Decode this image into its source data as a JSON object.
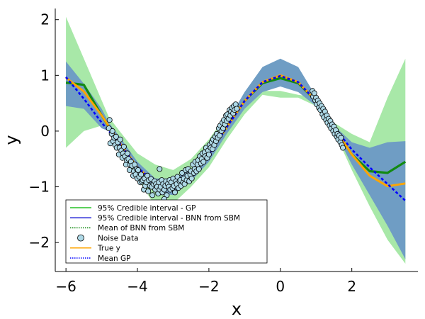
{
  "chart_data": {
    "type": "line",
    "xlabel": "x",
    "ylabel": "y",
    "xlim": [
      -6.3,
      3.85
    ],
    "ylim": [
      -2.52,
      2.2
    ],
    "x_ticks": [
      -6,
      -4,
      -2,
      0,
      2
    ],
    "x_tick_labels": [
      "−6",
      "−4",
      "−2",
      "0",
      "2"
    ],
    "y_ticks": [
      2,
      1,
      0,
      -1,
      -2
    ],
    "y_tick_labels": [
      "2",
      "1",
      "0",
      "−1",
      "−2"
    ],
    "grid": false,
    "legend_position": "bottom-left",
    "legend": [
      {
        "label": "95% Credible interval - GP",
        "kind": "line",
        "color": "#27c227",
        "dash": "solid"
      },
      {
        "label": "95% Credible interval - BNN from SBM",
        "kind": "line",
        "color": "#1f1fd6",
        "dash": "solid"
      },
      {
        "label": "Mean of BNN from SBM",
        "kind": "line",
        "color": "#008000",
        "dash": "dotted"
      },
      {
        "label": "Noise Data",
        "kind": "marker",
        "color": "#add8e6",
        "dash": "solid"
      },
      {
        "label": "True y",
        "kind": "line",
        "color": "#ffa500",
        "dash": "solid"
      },
      {
        "label": "Mean GP",
        "kind": "line",
        "color": "#0000ff",
        "dash": "dotted"
      }
    ],
    "colors": {
      "gp_band": "#a8e8a8",
      "bnn_band": "#6f9dc4",
      "bnn_mean": "#128a12",
      "true_y": "#ffa500",
      "gp_mean": "#0000ff",
      "noise_fill": "#add8e6"
    },
    "true_y": {
      "x": [
        -6.0,
        -5.5,
        -5.0,
        -4.5,
        -4.0,
        -3.5,
        -3.14,
        -3.0,
        -2.5,
        -2.0,
        -1.5,
        -1.0,
        -0.5,
        0.0,
        0.5,
        1.0,
        1.5,
        2.0,
        2.5,
        3.0,
        3.5
      ],
      "y": [
        0.96,
        0.71,
        0.28,
        -0.21,
        -0.65,
        -0.94,
        -1.0,
        -0.99,
        -0.8,
        -0.42,
        0.07,
        0.54,
        0.88,
        1.0,
        0.88,
        0.54,
        0.07,
        -0.42,
        -0.8,
        -0.99,
        -0.94
      ]
    },
    "gp_mean": {
      "x": [
        -6.0,
        -5.5,
        -5.0,
        -4.5,
        -4.0,
        -3.5,
        -3.14,
        -3.0,
        -2.5,
        -2.0,
        -1.5,
        -1.0,
        -0.5,
        0.0,
        0.5,
        1.0,
        1.5,
        2.0,
        2.5,
        3.0,
        3.5
      ],
      "y": [
        0.97,
        0.58,
        0.15,
        -0.22,
        -0.65,
        -0.93,
        -1.0,
        -0.99,
        -0.8,
        -0.42,
        0.07,
        0.54,
        0.88,
        0.99,
        0.88,
        0.54,
        0.07,
        -0.33,
        -0.65,
        -0.95,
        -1.25
      ]
    },
    "bnn_mean": {
      "x": [
        -6.0,
        -5.5,
        -5.0,
        -4.5,
        -4.0,
        -3.5,
        -3.14,
        -3.0,
        -2.5,
        -2.0,
        -1.5,
        -1.0,
        -0.5,
        0.0,
        0.5,
        1.0,
        1.5,
        2.0,
        2.5,
        3.0,
        3.5
      ],
      "y": [
        0.87,
        0.83,
        0.28,
        -0.23,
        -0.66,
        -0.94,
        -1.0,
        -0.99,
        -0.8,
        -0.42,
        0.07,
        0.54,
        0.86,
        0.95,
        0.86,
        0.54,
        0.07,
        -0.42,
        -0.72,
        -0.75,
        -0.55
      ]
    },
    "gp_band": {
      "x": [
        -6.0,
        -5.5,
        -5.0,
        -4.8,
        -4.5,
        -4.0,
        -3.5,
        -3.0,
        -2.5,
        -2.0,
        -1.5,
        -1.0,
        -0.5,
        0.0,
        0.5,
        1.0,
        1.5,
        2.0,
        2.5,
        3.0,
        3.5
      ],
      "upper": [
        2.05,
        1.3,
        0.55,
        0.25,
        0.0,
        -0.4,
        -0.6,
        -0.7,
        -0.5,
        -0.15,
        0.3,
        0.6,
        0.72,
        0.72,
        0.65,
        0.6,
        0.15,
        -0.05,
        -0.2,
        0.6,
        1.3
      ],
      "lower": [
        -0.3,
        0.0,
        0.1,
        0.1,
        -0.35,
        -0.85,
        -1.35,
        -1.3,
        -1.0,
        -0.65,
        -0.15,
        0.3,
        0.65,
        0.6,
        0.6,
        0.45,
        0.0,
        -0.7,
        -1.35,
        -1.95,
        -2.38
      ]
    },
    "bnn_band": {
      "x": [
        -6.0,
        -5.5,
        -5.0,
        -4.8,
        -4.5,
        -4.0,
        -3.5,
        -3.0,
        -2.5,
        -2.0,
        -1.5,
        -1.0,
        -0.5,
        0.0,
        0.5,
        1.0,
        1.5,
        2.0,
        2.5,
        3.0,
        3.5
      ],
      "upper": [
        1.25,
        0.85,
        0.4,
        0.15,
        -0.1,
        -0.55,
        -0.85,
        -0.85,
        -0.7,
        -0.3,
        0.15,
        0.7,
        1.15,
        1.3,
        1.15,
        0.62,
        0.1,
        -0.2,
        -0.3,
        -0.2,
        -0.18
      ],
      "lower": [
        0.45,
        0.4,
        0.05,
        0.0,
        -0.35,
        -0.75,
        -1.1,
        -1.15,
        -0.9,
        -0.55,
        -0.05,
        0.4,
        0.7,
        0.8,
        0.7,
        0.45,
        0.02,
        -0.6,
        -1.15,
        -1.7,
        -2.3
      ]
    },
    "noise_data": {
      "x": [
        -4.8,
        -4.78,
        -4.76,
        -4.72,
        -4.7,
        -4.68,
        -4.65,
        -4.62,
        -4.6,
        -4.58,
        -4.55,
        -4.52,
        -4.5,
        -4.48,
        -4.45,
        -4.42,
        -4.4,
        -4.38,
        -4.35,
        -4.32,
        -4.3,
        -4.28,
        -4.25,
        -4.22,
        -4.2,
        -4.18,
        -4.15,
        -4.12,
        -4.1,
        -4.08,
        -4.05,
        -4.02,
        -4.0,
        -3.98,
        -3.95,
        -3.92,
        -3.9,
        -3.88,
        -3.85,
        -3.82,
        -3.8,
        -3.78,
        -3.75,
        -3.72,
        -3.7,
        -3.68,
        -3.65,
        -3.62,
        -3.6,
        -3.58,
        -3.55,
        -3.52,
        -3.5,
        -3.48,
        -3.45,
        -3.42,
        -3.4,
        -3.38,
        -3.35,
        -3.32,
        -3.3,
        -3.28,
        -3.25,
        -3.22,
        -3.2,
        -3.18,
        -3.15,
        -3.12,
        -3.1,
        -3.08,
        -3.05,
        -3.02,
        -3.0,
        -2.98,
        -2.95,
        -2.92,
        -2.9,
        -2.88,
        -2.85,
        -2.82,
        -2.8,
        -2.78,
        -2.75,
        -2.72,
        -2.7,
        -2.68,
        -2.65,
        -2.62,
        -2.6,
        -2.58,
        -2.55,
        -2.52,
        -2.5,
        -2.48,
        -2.45,
        -2.42,
        -2.4,
        -2.38,
        -2.35,
        -2.32,
        -2.3,
        -2.28,
        -2.25,
        -2.22,
        -2.2,
        -2.18,
        -2.15,
        -2.12,
        -2.1,
        -2.08,
        -2.05,
        -2.02,
        -2.0,
        -1.98,
        -1.95,
        -1.92,
        -1.9,
        -1.88,
        -1.85,
        -1.82,
        -1.8,
        -1.78,
        -1.75,
        -1.72,
        -1.7,
        -1.68,
        -1.65,
        -1.62,
        -1.6,
        -1.58,
        -1.55,
        -1.52,
        -1.5,
        -1.48,
        -1.45,
        -1.42,
        -1.4,
        -1.38,
        -1.35,
        -1.32,
        -1.3,
        -1.28,
        -1.25,
        -1.22,
        0.9,
        0.92,
        0.95,
        0.98,
        1.0,
        1.02,
        1.05,
        1.08,
        1.1,
        1.12,
        1.15,
        1.18,
        1.2,
        1.22,
        1.25,
        1.28,
        1.3,
        1.32,
        1.35,
        1.38,
        1.4,
        1.42,
        1.45,
        1.48,
        1.5,
        1.52,
        1.55,
        1.58,
        1.6,
        1.62,
        1.65,
        1.68,
        1.7,
        1.72,
        1.75,
        -3.38,
        -3.25
      ],
      "y": [
        0.05,
        0.2,
        -0.22,
        -0.05,
        0.0,
        -0.18,
        -0.12,
        -0.25,
        -0.1,
        -0.3,
        -0.2,
        -0.42,
        -0.3,
        -0.15,
        -0.35,
        -0.48,
        -0.4,
        -0.28,
        -0.45,
        -0.6,
        -0.52,
        -0.4,
        -0.5,
        -0.7,
        -0.6,
        -0.55,
        -0.62,
        -0.8,
        -0.72,
        -0.6,
        -0.78,
        -0.68,
        -0.85,
        -0.7,
        -0.82,
        -0.92,
        -0.78,
        -0.9,
        -0.88,
        -1.05,
        -0.85,
        -0.98,
        -0.92,
        -0.8,
        -1.08,
        -0.88,
        -0.98,
        -0.86,
        -1.0,
        -1.15,
        -0.95,
        -0.9,
        -1.05,
        -0.95,
        -1.0,
        -1.12,
        -0.92,
        -1.05,
        -1.0,
        -0.88,
        -1.1,
        -0.95,
        -1.05,
        -0.98,
        -0.9,
        -1.15,
        -0.95,
        -1.0,
        -0.88,
        -1.05,
        -0.92,
        -1.02,
        -0.85,
        -0.98,
        -1.1,
        -0.9,
        -0.95,
        -0.82,
        -1.02,
        -0.9,
        -0.88,
        -0.98,
        -0.75,
        -0.92,
        -0.85,
        -0.95,
        -0.7,
        -0.88,
        -0.8,
        -0.68,
        -0.9,
        -0.78,
        -0.72,
        -0.85,
        -0.6,
        -0.75,
        -0.68,
        -0.55,
        -0.72,
        -0.6,
        -0.52,
        -0.68,
        -0.45,
        -0.58,
        -0.5,
        -0.4,
        -0.55,
        -0.38,
        -0.45,
        -0.3,
        -0.48,
        -0.35,
        -0.42,
        -0.25,
        -0.3,
        -0.2,
        -0.32,
        -0.15,
        -0.25,
        -0.1,
        -0.18,
        -0.05,
        -0.12,
        0.05,
        -0.08,
        0.1,
        0.0,
        0.15,
        0.05,
        0.2,
        0.12,
        0.28,
        0.18,
        0.3,
        0.22,
        0.38,
        0.28,
        0.35,
        0.42,
        0.32,
        0.45,
        0.38,
        0.48,
        0.4,
        0.72,
        0.62,
        0.68,
        0.55,
        0.6,
        0.48,
        0.55,
        0.42,
        0.5,
        0.38,
        0.45,
        0.3,
        0.4,
        0.25,
        0.35,
        0.2,
        0.28,
        0.15,
        0.22,
        0.1,
        0.18,
        0.05,
        0.12,
        0.0,
        0.08,
        -0.05,
        0.02,
        -0.1,
        -0.05,
        -0.15,
        -0.08,
        -0.2,
        -0.12,
        -0.25,
        -0.3,
        -0.68,
        -1.22
      ]
    }
  }
}
